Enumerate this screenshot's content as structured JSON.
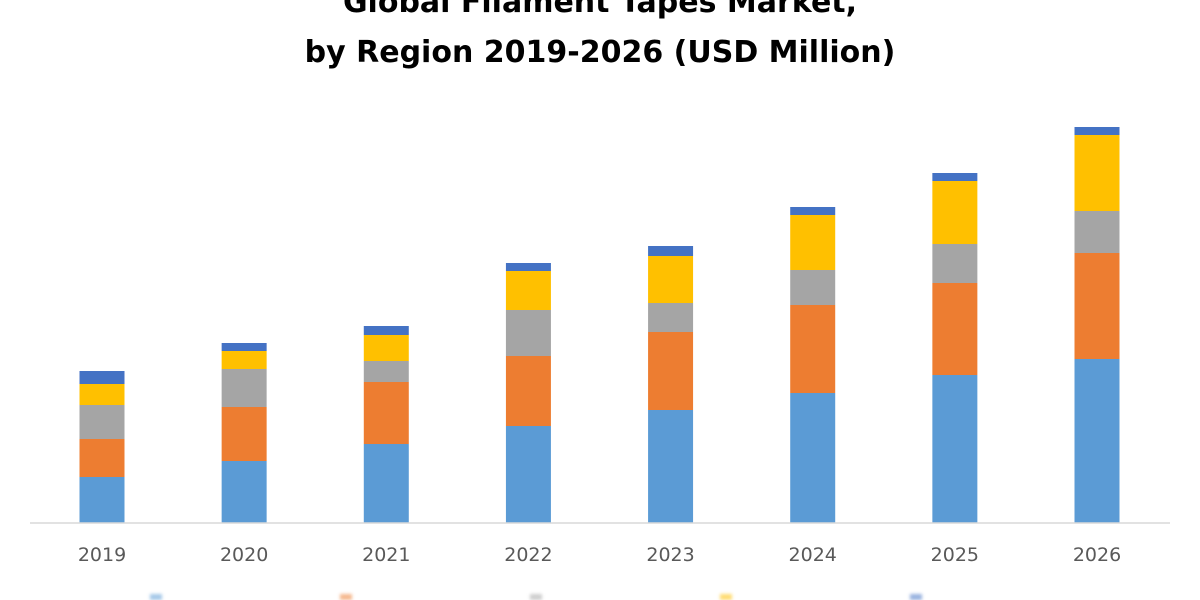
{
  "chart_data": {
    "type": "bar",
    "stacked": true,
    "title_lines": [
      "Global Filament Tapes Market,",
      "by Region 2019-2026 (USD Million)"
    ],
    "xlabel": "",
    "ylabel": "",
    "categories": [
      "2019",
      "2020",
      "2021",
      "2022",
      "2023",
      "2024",
      "2025",
      "2026"
    ],
    "series": [
      {
        "color": "#5B9BD5",
        "values": [
          46,
          62,
          79,
          97,
          113,
          130,
          148,
          164
        ]
      },
      {
        "color": "#ED7D31",
        "values": [
          38,
          54,
          62,
          70,
          78,
          88,
          92,
          106
        ]
      },
      {
        "color": "#A5A5A5",
        "values": [
          34,
          38,
          21,
          46,
          29,
          35,
          39,
          42
        ]
      },
      {
        "color": "#FFC000",
        "values": [
          21,
          18,
          26,
          39,
          47,
          55,
          63,
          76
        ]
      },
      {
        "color": "#4472C4",
        "values": [
          13,
          8,
          9,
          8,
          10,
          8,
          8,
          8
        ]
      }
    ],
    "ylim": [
      0,
      400
    ],
    "grid": false,
    "legend": "bottom"
  }
}
